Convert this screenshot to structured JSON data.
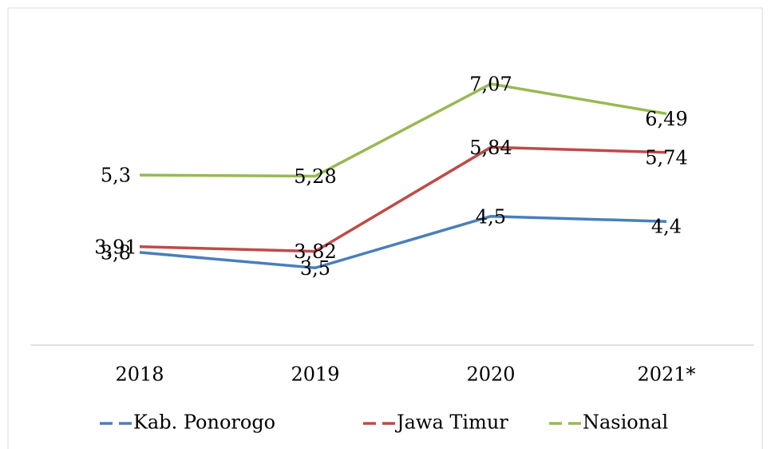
{
  "chart_data": {
    "type": "line",
    "categories": [
      "2018",
      "2019",
      "2020",
      "2021*"
    ],
    "series": [
      {
        "name": "Kab. Ponorogo",
        "color": "#4a7ebb",
        "values": [
          3.8,
          3.5,
          4.5,
          4.4
        ],
        "value_labels": [
          "3,8",
          "3,5",
          "4,5",
          "4,4"
        ]
      },
      {
        "name": "Jawa Timur",
        "color": "#be4b48",
        "values": [
          3.91,
          3.82,
          5.84,
          5.74
        ],
        "value_labels": [
          "3,91",
          "3,82",
          "5,84",
          "5,74"
        ]
      },
      {
        "name": "Nasional",
        "color": "#98b954",
        "values": [
          5.3,
          5.28,
          7.07,
          6.49
        ],
        "value_labels": [
          "5,3",
          "5,28",
          "7,07",
          "6,49"
        ]
      }
    ],
    "ylim": [
      2,
      8
    ],
    "legend": "bottom"
  }
}
